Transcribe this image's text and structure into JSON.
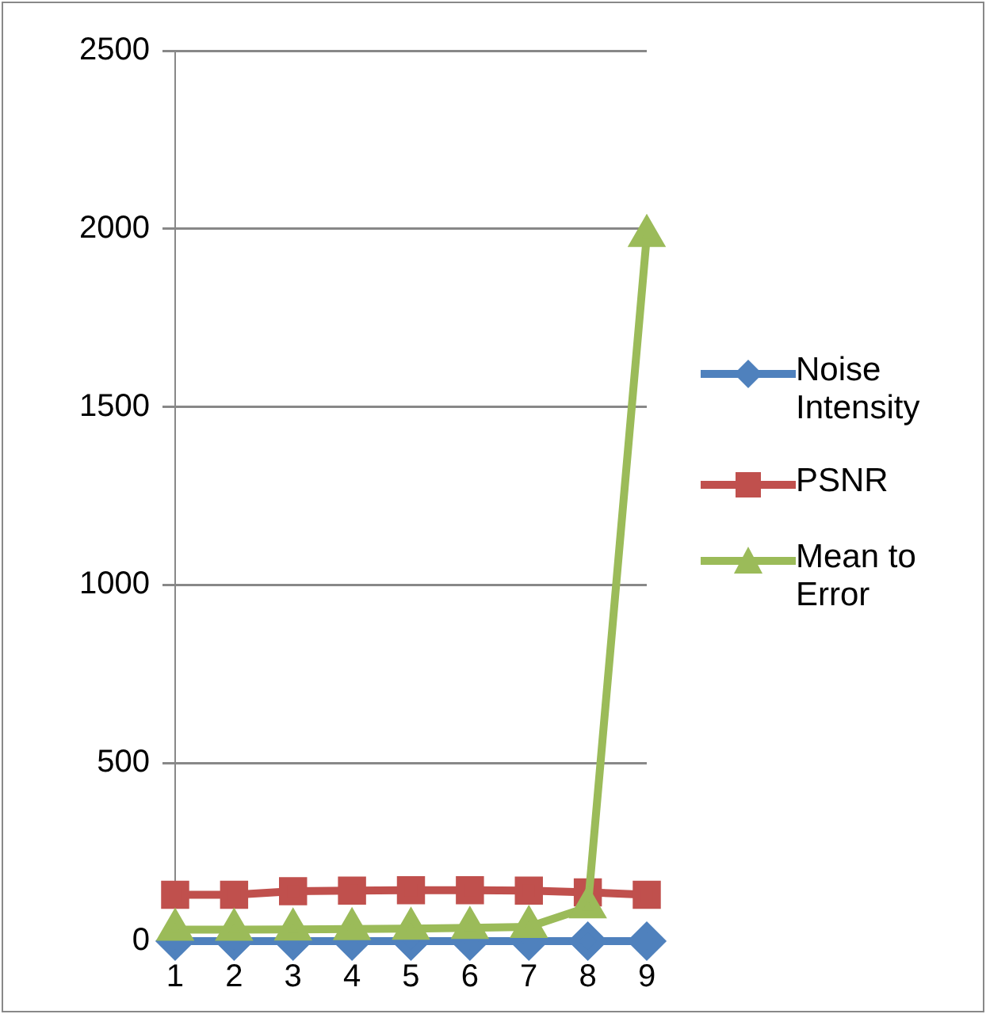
{
  "chart_data": {
    "type": "line",
    "categories": [
      "1",
      "2",
      "3",
      "4",
      "5",
      "6",
      "7",
      "8",
      "9"
    ],
    "series": [
      {
        "name": "Noise Intensity",
        "color": "#4f81bd",
        "marker": "diamond",
        "values": [
          0,
          0,
          0,
          0,
          0,
          0,
          0,
          0,
          0
        ]
      },
      {
        "name": "PSNR",
        "color": "#c0504d",
        "marker": "square",
        "values": [
          130,
          130,
          140,
          142,
          143,
          143,
          142,
          137,
          130
        ]
      },
      {
        "name": "Mean to Error",
        "color": "#9bbb59",
        "marker": "triangle",
        "values": [
          32,
          32,
          33,
          34,
          35,
          37,
          40,
          95,
          1980
        ]
      }
    ],
    "ylim": [
      0,
      2500
    ],
    "yticks": [
      0,
      500,
      1000,
      1500,
      2000,
      2500
    ],
    "grid": "y",
    "legend": "right"
  }
}
